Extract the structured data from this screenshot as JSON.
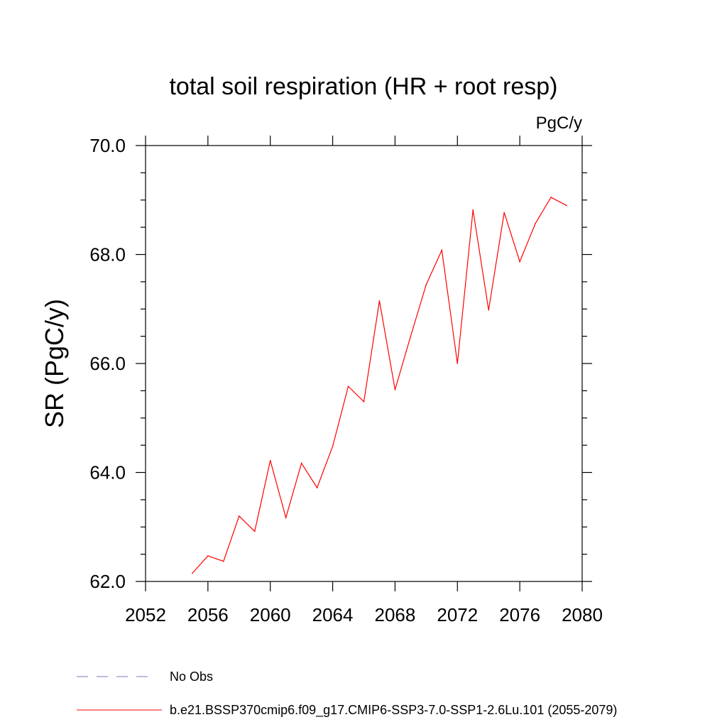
{
  "chart_data": {
    "type": "line",
    "title": "total soil respiration (HR + root resp)",
    "units_label": "PgC/y",
    "ylabel": "SR  (PgC/y)",
    "xlabel": "",
    "xlim": [
      2052,
      2080
    ],
    "ylim": [
      62.0,
      70.0
    ],
    "xticks": [
      "2052",
      "2056",
      "2060",
      "2064",
      "2068",
      "2072",
      "2076",
      "2080"
    ],
    "yticks": [
      "62.0",
      "64.0",
      "66.0",
      "68.0",
      "70.0"
    ],
    "grid": false,
    "series": [
      {
        "name": "b.e21.BSSP370cmip6.f09_g17.CMIP6-SSP3-7.0-SSP1-2.6Lu.101 (2055-2079)",
        "color": "#ff0000",
        "x": [
          2055,
          2056,
          2057,
          2058,
          2059,
          2060,
          2061,
          2062,
          2063,
          2064,
          2065,
          2066,
          2067,
          2068,
          2069,
          2070,
          2071,
          2072,
          2073,
          2074,
          2075,
          2076,
          2077,
          2078,
          2079
        ],
        "y": [
          62.15,
          62.47,
          62.37,
          63.2,
          62.92,
          64.22,
          63.17,
          64.17,
          63.72,
          64.48,
          65.58,
          65.3,
          67.15,
          65.52,
          66.5,
          67.45,
          68.08,
          66.0,
          68.82,
          66.98,
          68.77,
          67.87,
          68.57,
          69.05,
          68.9
        ]
      }
    ],
    "legend": [
      {
        "label": "No Obs",
        "style": "dashed",
        "color": "#7777bb"
      },
      {
        "label": "b.e21.BSSP370cmip6.f09_g17.CMIP6-SSP3-7.0-SSP1-2.6Lu.101 (2055-2079)",
        "style": "solid",
        "color": "#ff0000"
      }
    ]
  }
}
